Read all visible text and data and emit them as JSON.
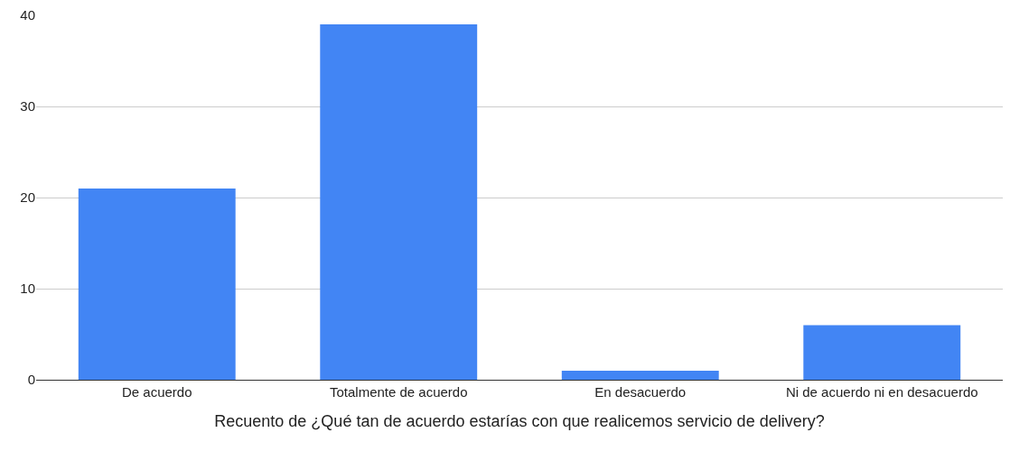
{
  "chart_data": {
    "type": "bar",
    "categories": [
      "De acuerdo",
      "Totalmente de acuerdo",
      "En desacuerdo",
      "Ni de acuerdo ni en desacuerdo"
    ],
    "values": [
      21,
      39,
      1,
      6
    ],
    "color": "#4285f4",
    "xlabel": "Recuento de ¿Qué tan de acuerdo estarías con que realicemos servicio de delivery?",
    "ylim": [
      0,
      40
    ],
    "yticks": [
      0,
      10,
      20,
      30,
      40
    ],
    "grid": "y",
    "legend": false
  }
}
